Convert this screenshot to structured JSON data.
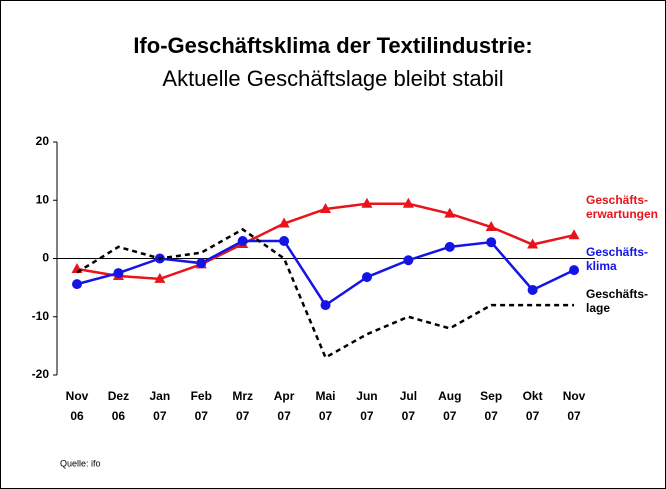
{
  "chart_data": {
    "type": "line",
    "title": "Ifo-Geschäftsklima der Textilindustrie:",
    "subtitle": "Aktuelle Geschäftslage bleibt stabil",
    "source": "Quelle: ifo",
    "categories": [
      "Nov 06",
      "Dez 06",
      "Jan 07",
      "Feb 07",
      "Mrz 07",
      "Apr 07",
      "Mai 07",
      "Jun 07",
      "Jul 07",
      "Aug 07",
      "Sep 07",
      "Okt 07",
      "Nov 07"
    ],
    "series": [
      {
        "name": "Geschäfts-erwartungen",
        "color": "#e8141c",
        "marker": "triangle",
        "dash": false,
        "values": [
          -1.8,
          -3,
          -3.5,
          -1,
          2.5,
          6,
          8.5,
          9.4,
          9.4,
          7.7,
          5.4,
          2.4,
          4
        ]
      },
      {
        "name": "Geschäfts-klima",
        "color": "#1414e6",
        "marker": "circle",
        "dash": false,
        "values": [
          -4.4,
          -2.5,
          0,
          -0.8,
          3,
          3,
          -8,
          -3.2,
          -0.3,
          2,
          2.8,
          -5.4,
          -2
        ]
      },
      {
        "name": "Geschäfts-lage",
        "color": "#000000",
        "marker": "none",
        "dash": true,
        "values": [
          -2.4,
          2,
          0,
          1,
          5,
          0,
          -17,
          -13,
          -10,
          -12,
          -8,
          -8,
          -8
        ]
      }
    ],
    "ylim": [
      -20,
      20
    ],
    "yticks": [
      -20,
      -10,
      0,
      10,
      20
    ]
  }
}
